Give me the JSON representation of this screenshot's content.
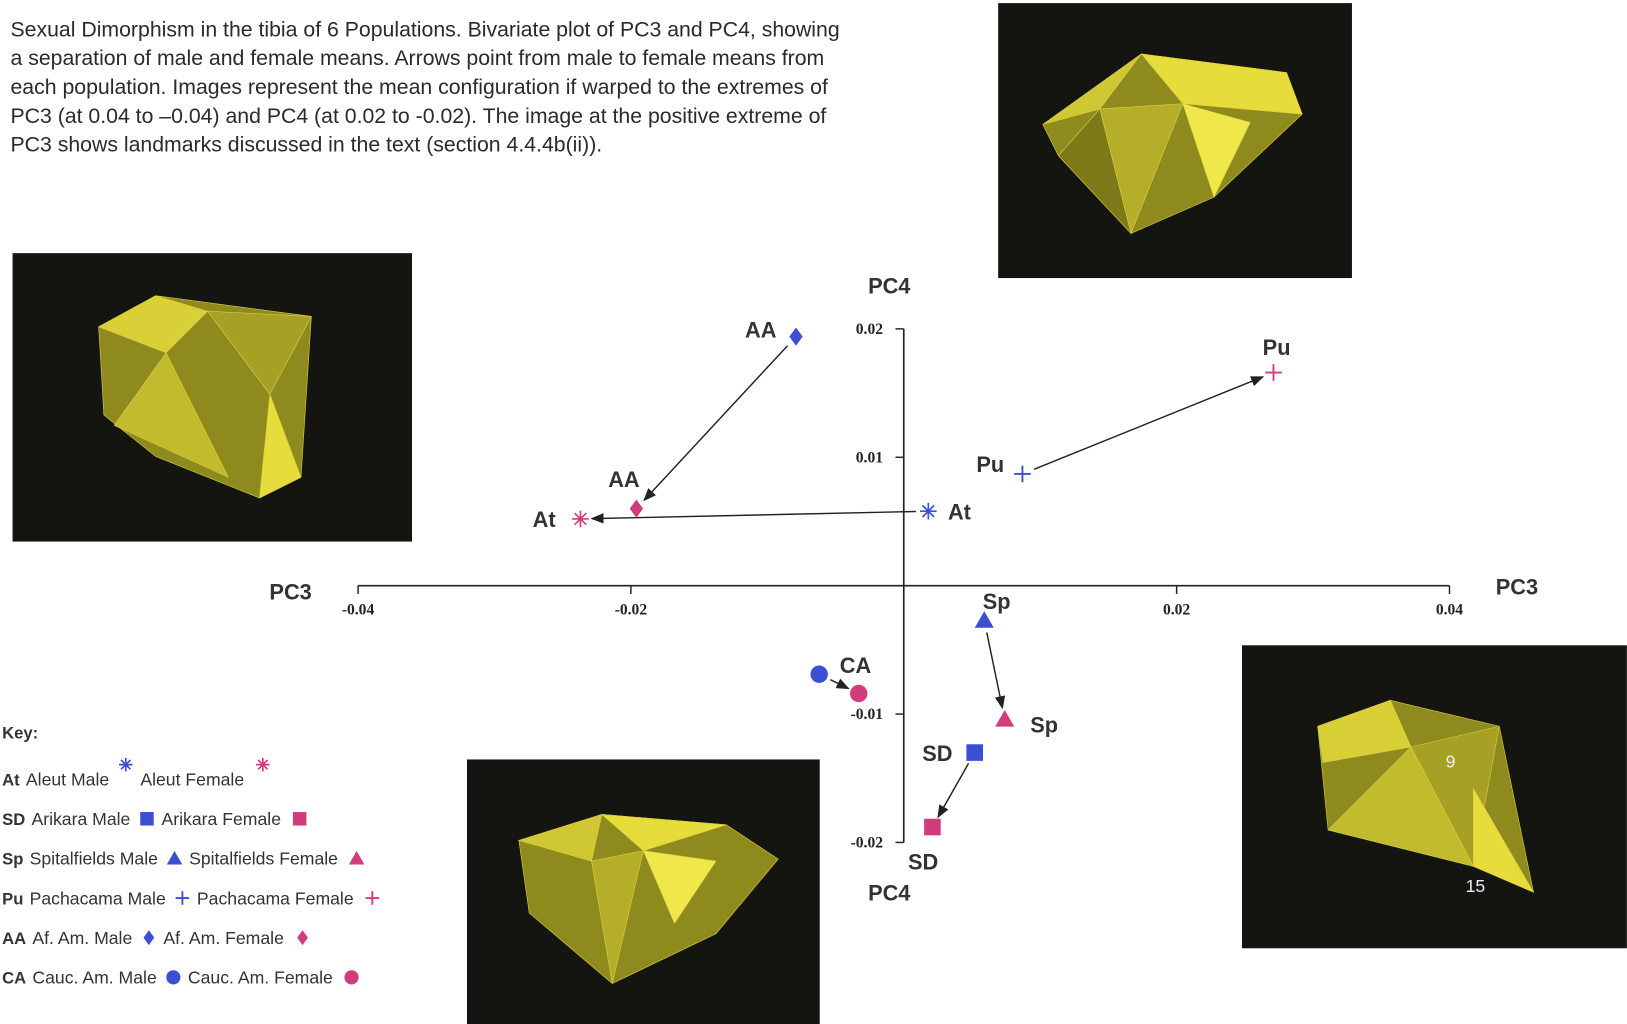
{
  "chart_data": {
    "type": "scatter",
    "caption": [
      "Sexual Dimorphism in the tibia of 6 Populations. Bivariate plot of PC3 and PC4, showing",
      "a separation of male and female means. Arrows point from male to female means from",
      "each population. Images represent the mean configuration if warped to the extremes of",
      "PC3 (at 0.04 to –0.04) and PC4 (at 0.02 to -0.02). The image at the positive extreme of",
      "PC3 shows landmarks discussed in the text (section 4.4.4b(ii))."
    ],
    "x_label": "PC3",
    "y_label": "PC4",
    "xlim": [
      -0.04,
      0.04
    ],
    "ylim": [
      -0.02,
      0.02
    ],
    "xticks": [
      -0.04,
      -0.02,
      0.02,
      0.04
    ],
    "yticks": [
      0.02,
      0.01,
      -0.01,
      -0.02
    ],
    "male_color": "#3b4fd2",
    "female_color": "#d23c7c",
    "key_title": "Key:",
    "populations": [
      {
        "code": "At",
        "marker": "asterisk",
        "male_name": "Aleut Male",
        "female_name": "Aleut Female",
        "male_x": 0.0018,
        "male_y": 0.0058,
        "female_x": -0.0237,
        "female_y": 0.0052
      },
      {
        "code": "SD",
        "marker": "square",
        "male_name": "Arikara Male",
        "female_name": "Arikara Female",
        "male_x": 0.0052,
        "male_y": -0.013,
        "female_x": 0.0021,
        "female_y": -0.0188
      },
      {
        "code": "Sp",
        "marker": "triangle",
        "male_name": "Spitalfields Male",
        "female_name": "Spitalfields Female",
        "male_x": 0.0059,
        "male_y": -0.0027,
        "female_x": 0.0074,
        "female_y": -0.0104
      },
      {
        "code": "Pu",
        "marker": "plus",
        "male_name": "Pachacama Male",
        "female_name": "Pachacama Female",
        "male_x": 0.0087,
        "male_y": 0.0087,
        "female_x": 0.0271,
        "female_y": 0.0166
      },
      {
        "code": "AA",
        "marker": "diamond",
        "male_name": "Af. Am. Male",
        "female_name": "Af. Am. Female",
        "male_x": -0.0079,
        "male_y": 0.0194,
        "female_x": -0.0196,
        "female_y": 0.006
      },
      {
        "code": "CA",
        "marker": "circle",
        "male_name": "Cauc. Am. Male",
        "female_name": "Cauc. Am. Female",
        "male_x": -0.0062,
        "male_y": -0.0069,
        "female_x": -0.0033,
        "female_y": -0.0084
      }
    ],
    "image_labels": [
      "9",
      "15"
    ]
  }
}
